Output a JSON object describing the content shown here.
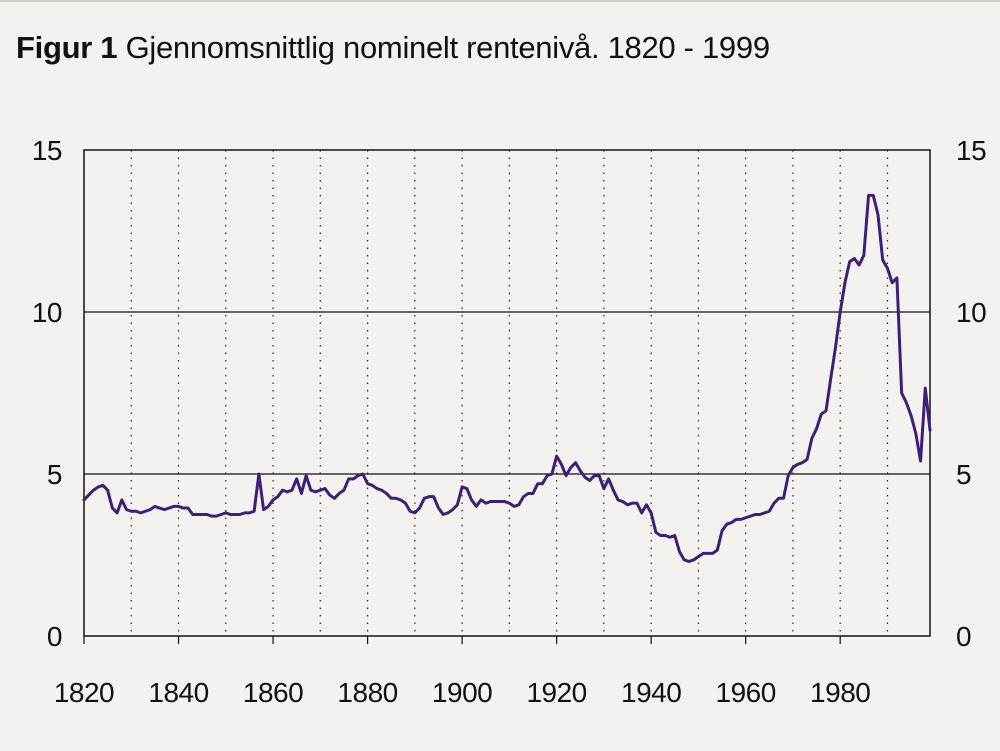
{
  "chart_data": {
    "type": "line",
    "title_prefix": "Figur 1",
    "title": "Gjennomsnittlig nominelt rentenivå. 1820 - 1999",
    "xlabel": "",
    "ylabel": "",
    "xlim": [
      1820,
      1999
    ],
    "ylim": [
      0,
      15
    ],
    "y_ticks": [
      "0",
      "5",
      "10",
      "15"
    ],
    "y_ticks_right": [
      "0",
      "5",
      "10",
      "15"
    ],
    "x_ticks": [
      "1820",
      "1840",
      "1860",
      "1880",
      "1900",
      "1920",
      "1940",
      "1960",
      "1980"
    ],
    "horizontal_gridlines": [
      5,
      10
    ],
    "vertical_dotted_gridlines": [
      1830,
      1840,
      1850,
      1860,
      1870,
      1880,
      1890,
      1900,
      1910,
      1920,
      1930,
      1940,
      1950,
      1960,
      1970,
      1980,
      1990
    ],
    "line_color": "#3d1f7a",
    "series": [
      {
        "name": "Gjennomsnittlig nominelt rentenivå",
        "x": [
          1820,
          1821,
          1822,
          1823,
          1824,
          1825,
          1826,
          1827,
          1828,
          1829,
          1830,
          1831,
          1832,
          1833,
          1834,
          1835,
          1836,
          1837,
          1838,
          1839,
          1840,
          1841,
          1842,
          1843,
          1844,
          1845,
          1846,
          1847,
          1848,
          1849,
          1850,
          1851,
          1852,
          1853,
          1854,
          1855,
          1856,
          1857,
          1858,
          1859,
          1860,
          1861,
          1862,
          1863,
          1864,
          1865,
          1866,
          1867,
          1868,
          1869,
          1870,
          1871,
          1872,
          1873,
          1874,
          1875,
          1876,
          1877,
          1878,
          1879,
          1880,
          1881,
          1882,
          1883,
          1884,
          1885,
          1886,
          1887,
          1888,
          1889,
          1890,
          1891,
          1892,
          1893,
          1894,
          1895,
          1896,
          1897,
          1898,
          1899,
          1900,
          1901,
          1902,
          1903,
          1904,
          1905,
          1906,
          1907,
          1908,
          1909,
          1910,
          1911,
          1912,
          1913,
          1914,
          1915,
          1916,
          1917,
          1918,
          1919,
          1920,
          1921,
          1922,
          1923,
          1924,
          1925,
          1926,
          1927,
          1928,
          1929,
          1930,
          1931,
          1932,
          1933,
          1934,
          1935,
          1936,
          1937,
          1938,
          1939,
          1940,
          1941,
          1942,
          1943,
          1944,
          1945,
          1946,
          1947,
          1948,
          1949,
          1950,
          1951,
          1952,
          1953,
          1954,
          1955,
          1956,
          1957,
          1958,
          1959,
          1960,
          1961,
          1962,
          1963,
          1964,
          1965,
          1966,
          1967,
          1968,
          1969,
          1970,
          1971,
          1972,
          1973,
          1974,
          1975,
          1976,
          1977,
          1978,
          1979,
          1980,
          1981,
          1982,
          1983,
          1984,
          1985,
          1986,
          1987,
          1988,
          1989,
          1990,
          1991,
          1992,
          1993,
          1994,
          1995,
          1996,
          1997,
          1998,
          1999
        ],
        "values": [
          4.2,
          4.35,
          4.5,
          4.6,
          4.65,
          4.5,
          3.95,
          3.8,
          4.2,
          3.9,
          3.85,
          3.85,
          3.8,
          3.85,
          3.9,
          4.0,
          3.95,
          3.9,
          3.95,
          4.0,
          4.0,
          3.95,
          3.95,
          3.75,
          3.75,
          3.75,
          3.75,
          3.7,
          3.7,
          3.75,
          3.8,
          3.75,
          3.75,
          3.75,
          3.8,
          3.8,
          3.85,
          5.0,
          3.9,
          4.0,
          4.2,
          4.3,
          4.5,
          4.45,
          4.5,
          4.85,
          4.4,
          4.95,
          4.5,
          4.45,
          4.5,
          4.55,
          4.35,
          4.25,
          4.4,
          4.5,
          4.85,
          4.85,
          4.95,
          5.0,
          4.7,
          4.65,
          4.55,
          4.5,
          4.4,
          4.25,
          4.25,
          4.2,
          4.1,
          3.85,
          3.8,
          3.95,
          4.25,
          4.3,
          4.3,
          3.95,
          3.75,
          3.8,
          3.9,
          4.05,
          4.6,
          4.55,
          4.2,
          4.0,
          4.2,
          4.1,
          4.15,
          4.15,
          4.15,
          4.15,
          4.1,
          4.0,
          4.05,
          4.3,
          4.4,
          4.4,
          4.7,
          4.7,
          4.95,
          5.0,
          5.55,
          5.3,
          4.95,
          5.2,
          5.35,
          5.1,
          4.9,
          4.8,
          4.95,
          4.95,
          4.55,
          4.85,
          4.5,
          4.2,
          4.15,
          4.05,
          4.1,
          4.1,
          3.8,
          4.05,
          3.8,
          3.2,
          3.1,
          3.1,
          3.05,
          3.1,
          2.6,
          2.35,
          2.3,
          2.35,
          2.45,
          2.55,
          2.55,
          2.55,
          2.65,
          3.25,
          3.45,
          3.5,
          3.6,
          3.6,
          3.65,
          3.7,
          3.75,
          3.75,
          3.8,
          3.85,
          4.1,
          4.25,
          4.25,
          4.95,
          5.2,
          5.3,
          5.35,
          5.45,
          6.1,
          6.4,
          6.85,
          6.95,
          7.95,
          8.9,
          10.0,
          10.9,
          11.55,
          11.65,
          11.45,
          11.75,
          13.6,
          13.6,
          13.0,
          11.6,
          11.35,
          10.9,
          11.05,
          7.5,
          7.2,
          6.8,
          6.25,
          5.4,
          7.65,
          6.35
        ]
      }
    ]
  }
}
